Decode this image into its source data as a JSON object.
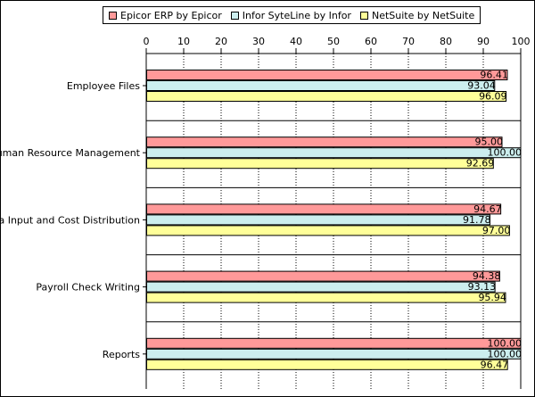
{
  "chart_data": {
    "type": "bar",
    "orientation": "horizontal",
    "categories": [
      "Employee Files",
      "Human Resource Management",
      "Data Input and Cost Distribution",
      "Payroll Check Writing",
      "Reports"
    ],
    "series": [
      {
        "name": "Epicor ERP by Epicor",
        "color": "#ff9999",
        "values": [
          96.41,
          95.0,
          94.67,
          94.38,
          100.0
        ],
        "labels": [
          "96.41",
          "95.00",
          "94.67",
          "94.38",
          "100.00"
        ]
      },
      {
        "name": "Infor SyteLine by Infor",
        "color": "#cceeee",
        "values": [
          93.04,
          100.0,
          91.78,
          93.13,
          100.0
        ],
        "labels": [
          "93.04",
          "100.00",
          "91.78",
          "93.13",
          "100.00"
        ]
      },
      {
        "name": "NetSuite by NetSuite",
        "color": "#ffff99",
        "values": [
          96.09,
          92.69,
          97.0,
          95.94,
          96.47
        ],
        "labels": [
          "96.09",
          "92.69",
          "97.00",
          "95.94",
          "96.47"
        ]
      }
    ],
    "xlim": [
      0,
      100
    ],
    "xticks": [
      "0",
      "10",
      "20",
      "30",
      "40",
      "50",
      "60",
      "70",
      "80",
      "90",
      "100"
    ],
    "grid": true,
    "legend_position": "top"
  }
}
